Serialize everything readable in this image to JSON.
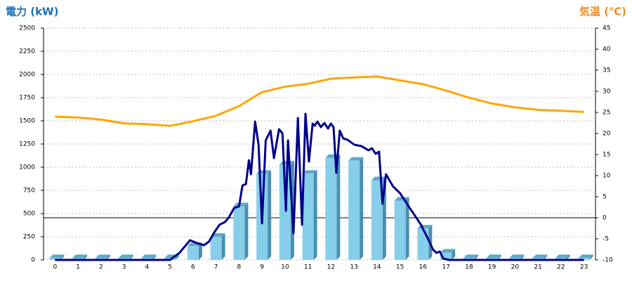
{
  "chart_data": {
    "type": "combo",
    "ylabel": "電力 (kW)",
    "ylabel_color": "#1a6fb5",
    "y2label": "気温 (℃)",
    "y2label_color": "#f08c1e",
    "categories": [
      "0",
      "1",
      "2",
      "3",
      "4",
      "5",
      "6",
      "7",
      "8",
      "9",
      "10",
      "11",
      "12",
      "13",
      "14",
      "15",
      "16",
      "17",
      "18",
      "19",
      "20",
      "21",
      "22",
      "23"
    ],
    "ylim": [
      0,
      2500
    ],
    "yticks": [
      0,
      250,
      500,
      750,
      1000,
      1250,
      1500,
      1750,
      2000,
      2250,
      2500
    ],
    "y2lim": [
      -10,
      45
    ],
    "y2ticks": [
      -10,
      -5,
      0,
      5,
      10,
      15,
      20,
      25,
      30,
      35,
      40,
      45
    ],
    "y2_refline": 0,
    "grid": true,
    "series": [
      {
        "type": "bar",
        "color": "#87ceeb",
        "values": [
          20,
          20,
          20,
          20,
          20,
          20,
          150,
          250,
          580,
          930,
          1030,
          930,
          1100,
          1070,
          860,
          640,
          340,
          80,
          20,
          20,
          20,
          20,
          20,
          20
        ]
      },
      {
        "type": "line",
        "color": "#00008b",
        "x": [
          0,
          5,
          5.41,
          5.87,
          6.17,
          6.48,
          6.69,
          6.94,
          7.15,
          7.39,
          7.55,
          7.79,
          8,
          8.15,
          8.3,
          8.43,
          8.52,
          8.7,
          8.85,
          9,
          9.16,
          9.37,
          9.52,
          9.74,
          9.89,
          10.04,
          10.13,
          10.37,
          10.56,
          10.74,
          10.89,
          11.04,
          11.2,
          11.29,
          11.41,
          11.56,
          11.71,
          11.87,
          11.99,
          12.11,
          12.23,
          12.38,
          12.53,
          12.72,
          13.02,
          13.33,
          13.63,
          13.78,
          13.94,
          14.09,
          14.24,
          14.39,
          14.69,
          15,
          15.3,
          15.61,
          15.91,
          16.22,
          16.43,
          16.58,
          16.73,
          16.88,
          17.12,
          23
        ],
        "values": [
          0,
          0,
          76,
          212,
          182,
          159,
          197,
          303,
          379,
          409,
          455,
          561,
          576,
          803,
          818,
          1076,
          924,
          1492,
          1242,
          394,
          1288,
          1394,
          1098,
          1409,
          1364,
          530,
          1288,
          288,
          1530,
          379,
          1576,
          1061,
          1470,
          1447,
          1492,
          1432,
          1477,
          1417,
          1470,
          1432,
          939,
          1394,
          1311,
          1295,
          1242,
          1227,
          1182,
          1205,
          1144,
          1167,
          606,
          924,
          795,
          720,
          606,
          492,
          379,
          227,
          114,
          76,
          91,
          15,
          0,
          0
        ]
      },
      {
        "type": "line",
        "axis": "y2",
        "color": "#ffa500",
        "values": [
          24,
          23.8,
          23.3,
          22.4,
          22.2,
          21.8,
          22.9,
          24.2,
          26.5,
          29.8,
          31.1,
          31.8,
          33,
          33.3,
          33.5,
          32.6,
          31.7,
          30.2,
          28.5,
          27.1,
          26.2,
          25.6,
          25.4,
          25.1
        ]
      }
    ]
  }
}
